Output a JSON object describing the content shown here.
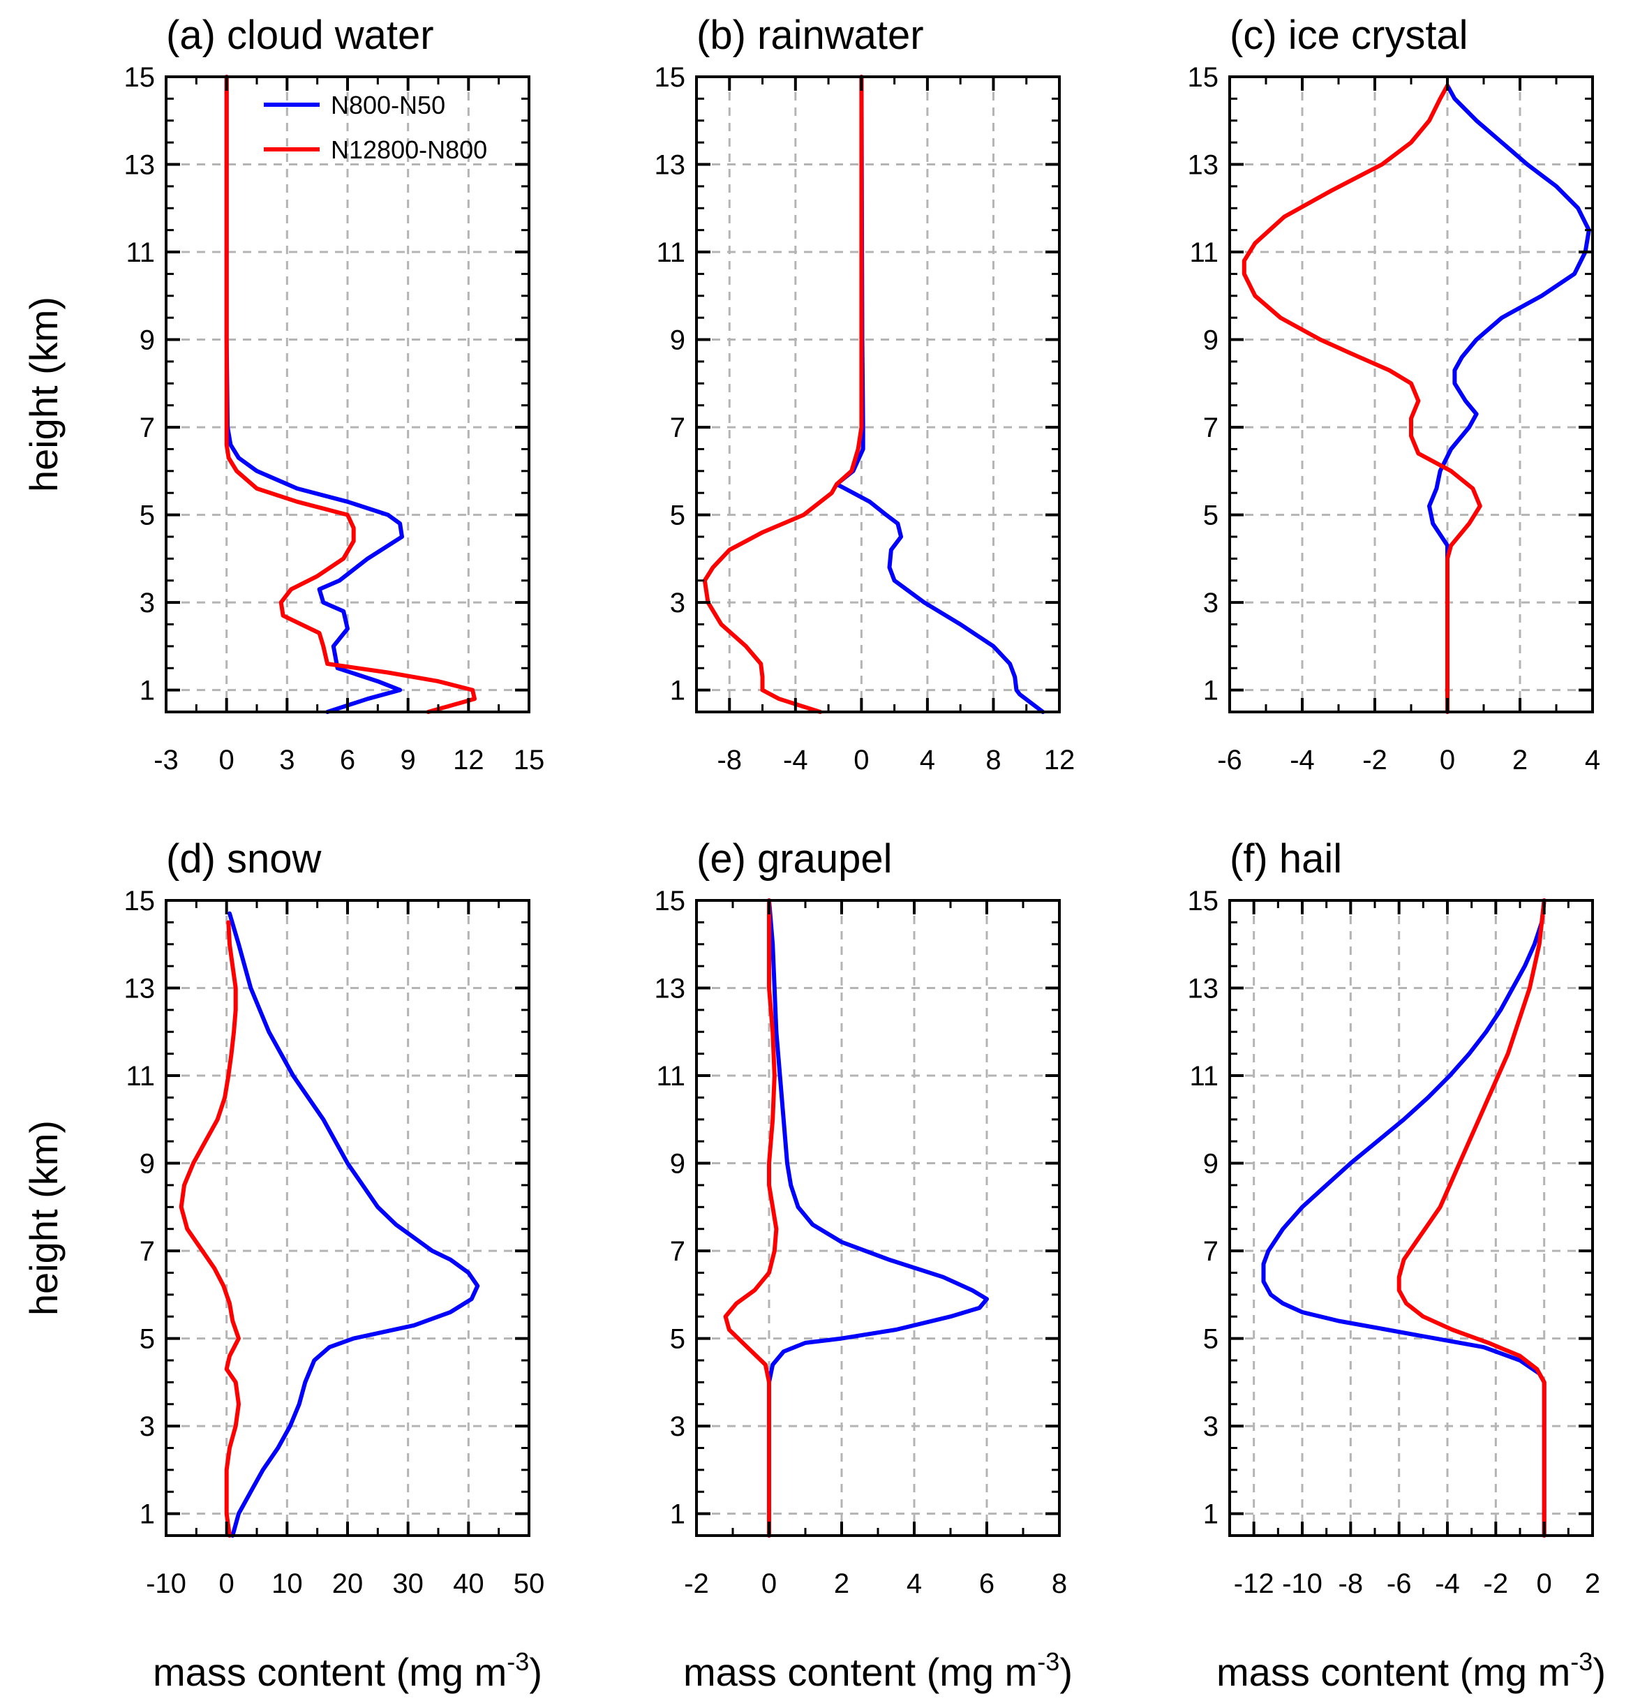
{
  "legend": [
    {
      "name": "N800-N50",
      "color": "#0000ff"
    },
    {
      "name": "N12800-N800",
      "color": "#ff0000"
    }
  ],
  "common": {
    "ylabel": "height (km)",
    "xlabel_main": "mass content (mg m",
    "xlabel_sup": "-3",
    "xlabel_close": ")",
    "ylim": [
      0.5,
      15
    ],
    "yticks": [
      1,
      3,
      5,
      7,
      9,
      11,
      13,
      15
    ]
  },
  "chart_data": [
    {
      "type": "line",
      "title": "(a) cloud water",
      "xlim": [
        -3,
        15
      ],
      "xticks": [
        -3,
        0,
        3,
        6,
        9,
        12,
        15
      ],
      "xtick_labels": [
        "-3",
        "0",
        "3",
        "6",
        "9",
        "12",
        "15"
      ],
      "series": [
        {
          "name": "N800-N50",
          "color": "#0000ff",
          "y": [
            0.5,
            0.8,
            1.0,
            1.2,
            1.5,
            2.0,
            2.4,
            2.8,
            3.0,
            3.3,
            3.5,
            4.0,
            4.5,
            4.8,
            5.0,
            5.3,
            5.6,
            6.0,
            6.3,
            6.6,
            7.0,
            9.0,
            15.0
          ],
          "x": [
            5.0,
            7.0,
            8.6,
            7.5,
            5.5,
            5.3,
            6.0,
            5.8,
            4.8,
            4.6,
            5.6,
            7.0,
            8.7,
            8.6,
            8.0,
            6.0,
            3.5,
            1.5,
            0.6,
            0.2,
            0.05,
            0.0,
            0.0
          ]
        },
        {
          "name": "N12800-N800",
          "color": "#ff0000",
          "y": [
            0.5,
            0.8,
            1.0,
            1.2,
            1.4,
            1.6,
            2.0,
            2.3,
            2.7,
            3.0,
            3.3,
            3.6,
            4.0,
            4.4,
            4.7,
            5.0,
            5.3,
            5.6,
            6.0,
            6.3,
            6.6,
            7.0,
            9.0,
            15.0
          ],
          "x": [
            10.0,
            12.3,
            12.2,
            10.5,
            8.0,
            5.0,
            4.8,
            4.6,
            2.8,
            2.7,
            3.2,
            4.5,
            5.8,
            6.3,
            6.3,
            6.0,
            3.5,
            1.5,
            0.5,
            0.1,
            0.0,
            0.0,
            0.0,
            0.0
          ]
        }
      ]
    },
    {
      "type": "line",
      "title": "(b) rainwater",
      "xlim": [
        -10,
        12
      ],
      "xticks": [
        -8,
        -4,
        0,
        4,
        8,
        12
      ],
      "xtick_labels": [
        "-8",
        "-4",
        "0",
        "4",
        "8",
        "12"
      ],
      "series": [
        {
          "name": "N800-N50",
          "color": "#0000ff",
          "y": [
            0.5,
            0.7,
            0.9,
            1.0,
            1.3,
            1.6,
            2.0,
            2.5,
            3.0,
            3.5,
            3.8,
            4.2,
            4.5,
            4.8,
            5.0,
            5.3,
            5.6,
            5.7,
            6.0,
            6.5,
            7.0,
            9.0,
            15.0
          ],
          "x": [
            11.0,
            10.3,
            9.6,
            9.4,
            9.3,
            9.0,
            8.0,
            6.0,
            3.8,
            2.0,
            1.7,
            1.8,
            2.4,
            2.2,
            1.5,
            0.5,
            -1.0,
            -1.5,
            -0.5,
            0.1,
            0.1,
            0.05,
            0.0
          ]
        },
        {
          "name": "N12800-N800",
          "color": "#ff0000",
          "y": [
            0.5,
            0.8,
            1.0,
            1.3,
            1.6,
            2.0,
            2.5,
            3.0,
            3.5,
            3.8,
            4.2,
            4.6,
            5.0,
            5.5,
            5.7,
            6.0,
            6.5,
            7.0,
            9.0,
            15.0
          ],
          "x": [
            -2.5,
            -5.0,
            -6.0,
            -6.0,
            -6.1,
            -7.0,
            -8.5,
            -9.3,
            -9.5,
            -9.0,
            -8.0,
            -6.0,
            -3.5,
            -1.8,
            -1.5,
            -0.6,
            -0.2,
            0.0,
            0.0,
            0.0
          ]
        }
      ]
    },
    {
      "type": "line",
      "title": "(c) ice crystal",
      "xlim": [
        -6,
        4
      ],
      "xticks": [
        -6,
        -4,
        -2,
        0,
        2,
        4
      ],
      "xtick_labels": [
        "-6",
        "-4",
        "-2",
        "0",
        "2",
        "4"
      ],
      "series": [
        {
          "name": "N800-N50",
          "color": "#0000ff",
          "y": [
            0.5,
            4.0,
            4.3,
            4.8,
            5.2,
            5.6,
            6.0,
            6.5,
            7.0,
            7.3,
            7.6,
            8.0,
            8.3,
            8.6,
            9.0,
            9.5,
            10.0,
            10.5,
            11.0,
            11.5,
            12.0,
            12.5,
            13.0,
            13.5,
            14.0,
            14.5,
            14.8
          ],
          "x": [
            0.0,
            0.0,
            0.0,
            -0.4,
            -0.5,
            -0.3,
            -0.2,
            0.1,
            0.6,
            0.8,
            0.5,
            0.2,
            0.2,
            0.4,
            0.8,
            1.5,
            2.6,
            3.5,
            3.8,
            3.9,
            3.6,
            3.0,
            2.2,
            1.5,
            0.8,
            0.2,
            0.0
          ]
        },
        {
          "name": "N12800-N800",
          "color": "#ff0000",
          "y": [
            0.5,
            4.0,
            4.3,
            4.8,
            5.2,
            5.6,
            6.0,
            6.4,
            6.8,
            7.2,
            7.6,
            8.0,
            8.3,
            8.7,
            9.0,
            9.5,
            10.0,
            10.5,
            10.8,
            11.2,
            11.8,
            12.4,
            13.0,
            13.5,
            14.0,
            14.5,
            14.8
          ],
          "x": [
            0.0,
            0.0,
            0.1,
            0.6,
            0.9,
            0.7,
            0.1,
            -0.8,
            -1.0,
            -1.0,
            -0.8,
            -1.0,
            -1.6,
            -2.7,
            -3.5,
            -4.6,
            -5.3,
            -5.6,
            -5.6,
            -5.3,
            -4.5,
            -3.2,
            -1.8,
            -1.0,
            -0.5,
            -0.2,
            0.0
          ]
        }
      ]
    },
    {
      "type": "line",
      "title": "(d) snow",
      "xlim": [
        -10,
        50
      ],
      "xticks": [
        -10,
        0,
        10,
        20,
        30,
        40,
        50
      ],
      "xtick_labels": [
        "-10",
        "0",
        "10",
        "20",
        "30",
        "40",
        "50"
      ],
      "series": [
        {
          "name": "N800-N50",
          "color": "#0000ff",
          "y": [
            0.5,
            1.0,
            1.5,
            2.0,
            2.5,
            3.0,
            3.5,
            4.0,
            4.5,
            4.8,
            5.0,
            5.3,
            5.6,
            5.9,
            6.2,
            6.5,
            6.8,
            7.0,
            7.3,
            7.6,
            8.0,
            8.5,
            9.0,
            10.0,
            11.0,
            12.0,
            13.0,
            14.0,
            14.7
          ],
          "x": [
            1.0,
            2.0,
            4.0,
            6.0,
            8.5,
            10.5,
            12.0,
            13.0,
            14.5,
            17.0,
            21.0,
            31.0,
            37.0,
            40.5,
            41.5,
            40.0,
            37.0,
            34.0,
            31.0,
            28.0,
            25.0,
            22.5,
            20.0,
            16.0,
            11.0,
            7.0,
            4.0,
            2.0,
            0.5
          ]
        },
        {
          "name": "N12800-N800",
          "color": "#ff0000",
          "y": [
            0.5,
            1.0,
            1.5,
            2.0,
            2.5,
            3.0,
            3.5,
            4.0,
            4.3,
            4.6,
            5.0,
            5.4,
            5.8,
            6.2,
            6.6,
            7.0,
            7.5,
            8.0,
            8.5,
            9.0,
            9.5,
            10.0,
            10.5,
            11.0,
            11.5,
            12.0,
            12.5,
            13.0,
            13.5,
            14.0,
            14.5
          ],
          "x": [
            0.5,
            0.0,
            0.0,
            0.0,
            0.5,
            1.5,
            2.0,
            1.5,
            0.0,
            0.5,
            2.0,
            1.0,
            0.5,
            -0.5,
            -2.0,
            -4.0,
            -6.5,
            -7.5,
            -7.0,
            -5.5,
            -3.5,
            -1.5,
            -0.3,
            0.3,
            0.8,
            1.2,
            1.5,
            1.5,
            1.0,
            0.5,
            0.3
          ]
        }
      ]
    },
    {
      "type": "line",
      "title": "(e) graupel",
      "xlim": [
        -2,
        8
      ],
      "xticks": [
        -2,
        0,
        2,
        4,
        6,
        8
      ],
      "xtick_labels": [
        "-2",
        "0",
        "2",
        "4",
        "6",
        "8"
      ],
      "series": [
        {
          "name": "N800-N50",
          "color": "#0000ff",
          "y": [
            0.5,
            4.0,
            4.4,
            4.7,
            4.9,
            5.0,
            5.2,
            5.5,
            5.7,
            5.9,
            6.1,
            6.4,
            6.8,
            7.2,
            7.6,
            8.0,
            8.5,
            9.0,
            10.0,
            11.0,
            12.0,
            13.0,
            14.0,
            15.0
          ],
          "x": [
            0.0,
            0.0,
            0.1,
            0.4,
            1.0,
            2.0,
            3.5,
            5.0,
            5.8,
            6.0,
            5.6,
            4.8,
            3.3,
            2.0,
            1.2,
            0.8,
            0.6,
            0.5,
            0.4,
            0.3,
            0.2,
            0.15,
            0.1,
            0.0
          ]
        },
        {
          "name": "N12800-N800",
          "color": "#ff0000",
          "y": [
            0.5,
            4.0,
            4.4,
            4.8,
            5.2,
            5.5,
            5.8,
            6.1,
            6.5,
            7.0,
            7.5,
            8.0,
            8.5,
            9.0,
            10.0,
            11.0,
            12.0,
            13.0,
            14.0,
            15.0
          ],
          "x": [
            0.0,
            0.0,
            -0.1,
            -0.6,
            -1.1,
            -1.2,
            -0.9,
            -0.4,
            0.0,
            0.15,
            0.2,
            0.1,
            0.0,
            0.0,
            0.1,
            0.15,
            0.1,
            0.0,
            0.0,
            0.0
          ]
        }
      ]
    },
    {
      "type": "line",
      "title": "(f) hail",
      "xlim": [
        -13,
        2
      ],
      "xticks": [
        -12,
        -10,
        -8,
        -6,
        -4,
        -2,
        0,
        2
      ],
      "xtick_labels": [
        "-12",
        "-10",
        "-8",
        "-6",
        "-4",
        "-2",
        "0",
        "2"
      ],
      "series": [
        {
          "name": "N800-N50",
          "color": "#0000ff",
          "y": [
            0.5,
            4.0,
            4.2,
            4.5,
            4.8,
            5.0,
            5.2,
            5.4,
            5.6,
            5.8,
            6.0,
            6.3,
            6.7,
            7.0,
            7.5,
            8.0,
            8.5,
            9.0,
            9.5,
            10.0,
            10.5,
            11.0,
            11.5,
            12.0,
            12.5,
            13.0,
            13.5,
            14.0,
            14.5,
            15.0
          ],
          "x": [
            0.0,
            0.0,
            -0.2,
            -1.0,
            -2.5,
            -4.5,
            -6.5,
            -8.5,
            -10.0,
            -10.8,
            -11.3,
            -11.6,
            -11.6,
            -11.4,
            -10.8,
            -10.0,
            -9.0,
            -8.0,
            -6.9,
            -5.8,
            -4.8,
            -3.9,
            -3.1,
            -2.4,
            -1.8,
            -1.3,
            -0.8,
            -0.4,
            -0.1,
            0.0
          ]
        },
        {
          "name": "N12800-N800",
          "color": "#ff0000",
          "y": [
            0.5,
            4.0,
            4.3,
            4.6,
            4.9,
            5.2,
            5.5,
            5.8,
            6.1,
            6.4,
            6.8,
            7.2,
            7.6,
            8.0,
            8.5,
            9.0,
            9.5,
            10.0,
            10.5,
            11.0,
            11.5,
            12.0,
            12.5,
            13.0,
            13.5,
            14.0,
            14.5,
            15.0
          ],
          "x": [
            0.0,
            0.0,
            -0.3,
            -1.0,
            -2.3,
            -3.8,
            -5.0,
            -5.7,
            -6.0,
            -6.0,
            -5.8,
            -5.3,
            -4.8,
            -4.3,
            -3.9,
            -3.5,
            -3.1,
            -2.7,
            -2.3,
            -1.9,
            -1.5,
            -1.2,
            -0.9,
            -0.6,
            -0.4,
            -0.2,
            -0.1,
            0.0
          ]
        }
      ]
    }
  ]
}
